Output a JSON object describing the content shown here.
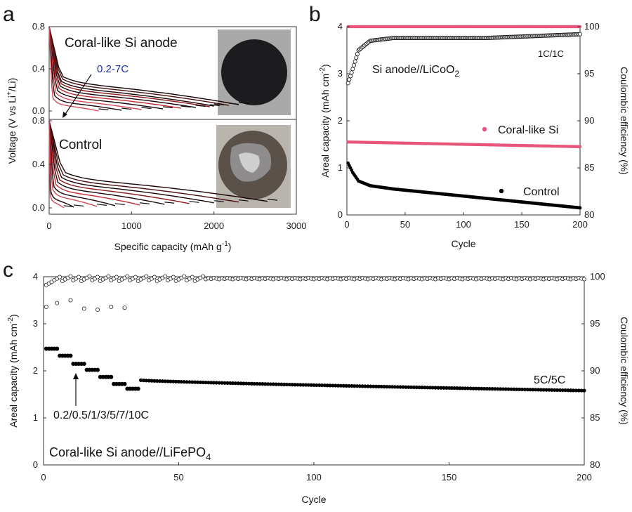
{
  "colors": {
    "red": "#d9253a",
    "pink": "#e8557a",
    "black": "#000000",
    "blue": "#1a2bb0",
    "dark_red_series": [
      "#2a0a0a",
      "#4a1010",
      "#6b1414",
      "#8c1a1a",
      "#a81e24",
      "#c22a30",
      "#d64a5a"
    ]
  },
  "chart_data": [
    {
      "id": "a",
      "type": "line",
      "panel_letter": "a",
      "xlabel": "Specific capacity (mAh g",
      "xlabel_sup": "-1",
      "xlabel_end": ")",
      "ylabel_pre": "Voltage (V vs Li",
      "ylabel_sup": "+",
      "ylabel_post": "/Li)",
      "xlim": [
        0,
        3000
      ],
      "x_ticks": [
        "0",
        "1000",
        "2000",
        "3000"
      ],
      "x_tick_values": [
        0,
        1000,
        2000,
        3000
      ],
      "subplots": [
        {
          "name": "Coral-like Si anode",
          "title": "Coral-like Si anode",
          "ylim": [
            0,
            0.8
          ],
          "y_ticks": [
            "0.0",
            "0.4",
            "0.8"
          ],
          "y_tick_values": [
            0,
            0.4,
            0.8
          ],
          "annotation": "0.2-7C",
          "series_end_capacity": [
            2300,
            2180,
            2000,
            1950,
            1780,
            1600,
            1380,
            1120,
            880,
            600
          ]
        },
        {
          "name": "Control",
          "title": "Control",
          "ylim": [
            0,
            0.8
          ],
          "y_ticks": [
            "0.0",
            "0.4",
            "0.8"
          ],
          "y_tick_values": [
            0,
            0.4,
            0.8
          ],
          "series_end_capacity": [
            2650,
            2300,
            2000,
            1700,
            1400,
            1100,
            800,
            580,
            300,
            180
          ]
        }
      ]
    },
    {
      "id": "b",
      "type": "scatter",
      "panel_letter": "b",
      "title": "Si anode//LiCoO",
      "title_sub": "2",
      "rate_label": "1C/1C",
      "xlabel": "Cycle",
      "ylabel_pre": "Areal capacity (mAh cm",
      "ylabel_sup": "-2",
      "ylabel_post": ")",
      "y2label": "Coulombic efficiency (%)",
      "xlim": [
        0,
        200
      ],
      "ylim": [
        0,
        4
      ],
      "y2lim": [
        80,
        100
      ],
      "x_ticks": [
        "0",
        "50",
        "100",
        "150",
        "200"
      ],
      "x_tick_values": [
        0,
        50,
        100,
        150,
        200
      ],
      "y_ticks": [
        "0",
        "1",
        "2",
        "3",
        "4"
      ],
      "y_tick_values": [
        0,
        1,
        2,
        3,
        4
      ],
      "y2_ticks": [
        "80",
        "85",
        "90",
        "95",
        "100"
      ],
      "y2_tick_values": [
        80,
        85,
        90,
        95,
        100
      ],
      "legend": [
        {
          "label": "Coral-like Si",
          "color": "#e8557a"
        },
        {
          "label": "Control",
          "color": "#000000"
        }
      ],
      "series": [
        {
          "name": "Coral-like Si capacity",
          "axis": "left",
          "start": 1.55,
          "end": 1.45
        },
        {
          "name": "Control capacity",
          "axis": "left",
          "points": [
            [
              1,
              1.1
            ],
            [
              5,
              0.9
            ],
            [
              10,
              0.72
            ],
            [
              20,
              0.62
            ],
            [
              40,
              0.55
            ],
            [
              80,
              0.45
            ],
            [
              120,
              0.35
            ],
            [
              160,
              0.25
            ],
            [
              200,
              0.15
            ]
          ]
        },
        {
          "name": "Coral-like Si CE",
          "axis": "right",
          "value": 100
        },
        {
          "name": "Control CE",
          "axis": "right",
          "points": [
            [
              1,
              94
            ],
            [
              5,
              95.5
            ],
            [
              10,
              97.5
            ],
            [
              20,
              98.5
            ],
            [
              40,
              98.8
            ],
            [
              80,
              98.8
            ],
            [
              120,
              98.8
            ],
            [
              160,
              99
            ],
            [
              200,
              99.2
            ]
          ]
        }
      ]
    },
    {
      "id": "c",
      "type": "scatter",
      "panel_letter": "c",
      "title": "Coral-like Si anode//LiFePO",
      "title_sub": "4",
      "rate_label": "5C/5C",
      "rate_steps_label": "0.2/0.5/1/3/5/7/10C",
      "xlabel": "Cycle",
      "ylabel_pre": "Areal capacity (mAh cm",
      "ylabel_sup": "-2",
      "ylabel_post": ")",
      "y2label": "Coulombic efficiency (%)",
      "xlim": [
        0,
        200
      ],
      "ylim": [
        0,
        4
      ],
      "y2lim": [
        80,
        100
      ],
      "x_ticks": [
        "0",
        "50",
        "100",
        "150",
        "200"
      ],
      "x_tick_values": [
        0,
        50,
        100,
        150,
        200
      ],
      "y_ticks": [
        "0",
        "1",
        "2",
        "3",
        "4"
      ],
      "y_tick_values": [
        0,
        1,
        2,
        3,
        4
      ],
      "y2_ticks": [
        "80",
        "85",
        "90",
        "95",
        "100"
      ],
      "y2_tick_values": [
        80,
        85,
        90,
        95,
        100
      ],
      "rate_steps": [
        {
          "from": 1,
          "to": 5,
          "capacity": 2.47
        },
        {
          "from": 6,
          "to": 10,
          "capacity": 2.32
        },
        {
          "from": 11,
          "to": 15,
          "capacity": 2.15
        },
        {
          "from": 16,
          "to": 20,
          "capacity": 2.02
        },
        {
          "from": 21,
          "to": 25,
          "capacity": 1.87
        },
        {
          "from": 26,
          "to": 30,
          "capacity": 1.72
        },
        {
          "from": 31,
          "to": 35,
          "capacity": 1.62
        }
      ],
      "long_cycle": {
        "from": 36,
        "to": 200,
        "start": 1.8,
        "end": 1.58
      },
      "ce_outliers": [
        [
          1,
          96.8
        ],
        [
          5,
          97.2
        ],
        [
          10,
          97.5
        ],
        [
          15,
          96.6
        ],
        [
          20,
          96.5
        ],
        [
          25,
          96.8
        ],
        [
          30,
          96.7
        ]
      ],
      "ce_main": 99.8
    }
  ]
}
